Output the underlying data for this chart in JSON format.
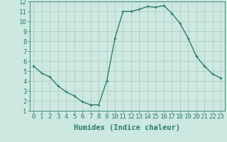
{
  "x": [
    0,
    1,
    2,
    3,
    4,
    5,
    6,
    7,
    8,
    9,
    10,
    11,
    12,
    13,
    14,
    15,
    16,
    17,
    18,
    19,
    20,
    21,
    22,
    23
  ],
  "y": [
    5.5,
    4.8,
    4.4,
    3.5,
    2.9,
    2.5,
    1.9,
    1.6,
    1.6,
    4.0,
    8.3,
    11.0,
    11.0,
    11.2,
    11.5,
    11.4,
    11.6,
    10.8,
    9.8,
    8.3,
    6.5,
    5.5,
    4.7,
    4.3
  ],
  "line_color": "#2e7d70",
  "marker": "+",
  "marker_size": 3,
  "bg_color": "#cce8e0",
  "grid_color": "#aac8c0",
  "xlabel": "Humidex (Indice chaleur)",
  "ylim": [
    1,
    12
  ],
  "xlim": [
    -0.5,
    23.5
  ],
  "yticks": [
    1,
    2,
    3,
    4,
    5,
    6,
    7,
    8,
    9,
    10,
    11,
    12
  ],
  "xticks": [
    0,
    1,
    2,
    3,
    4,
    5,
    6,
    7,
    8,
    9,
    10,
    11,
    12,
    13,
    14,
    15,
    16,
    17,
    18,
    19,
    20,
    21,
    22,
    23
  ],
  "xtick_labels": [
    "0",
    "1",
    "2",
    "3",
    "4",
    "5",
    "6",
    "7",
    "8",
    "9",
    "10",
    "11",
    "12",
    "13",
    "14",
    "15",
    "16",
    "17",
    "18",
    "19",
    "20",
    "21",
    "22",
    "23"
  ],
  "tick_fontsize": 6.5,
  "xlabel_fontsize": 7.5,
  "line_width": 1.0,
  "marker_edge_width": 0.8
}
